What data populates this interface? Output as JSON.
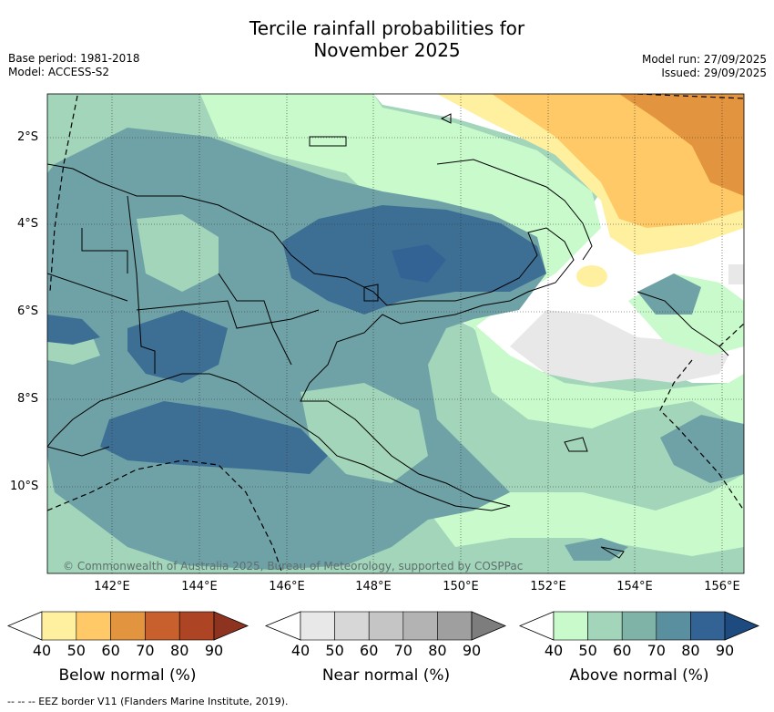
{
  "title_line1": "Tercile rainfall probabilities for",
  "title_line2": "November 2025",
  "meta_left": {
    "line1": "Base period: 1981-2018",
    "line2": "Model: ACCESS-S2"
  },
  "meta_right": {
    "line1": "Model run: 27/09/2025",
    "line2": "Issued: 29/09/2025"
  },
  "lat_labels": [
    "2°S",
    "4°S",
    "6°S",
    "8°S",
    "10°S"
  ],
  "lon_labels": [
    "142°E",
    "144°E",
    "146°E",
    "148°E",
    "150°E",
    "152°E",
    "154°E",
    "156°E"
  ],
  "copyright": "© Commonwealth of Australia 2025, Bureau of Meteorology, supported by COSPPac",
  "colorbars": [
    {
      "title": "Below normal (%)",
      "ticks": [
        "40",
        "50",
        "60",
        "70",
        "80",
        "90"
      ],
      "colors": [
        "#ffffff",
        "#fff0a0",
        "#fec966",
        "#e2943f",
        "#c8602e",
        "#ad4524",
        "#8e3320"
      ]
    },
    {
      "title": "Near normal (%)",
      "ticks": [
        "40",
        "50",
        "60",
        "70",
        "80",
        "90"
      ],
      "colors": [
        "#ffffff",
        "#e8e8e8",
        "#d7d7d7",
        "#c5c5c5",
        "#b3b3b3",
        "#9f9f9f",
        "#7d7d7d"
      ]
    },
    {
      "title": "Above normal (%)",
      "ticks": [
        "40",
        "50",
        "60",
        "70",
        "80",
        "90"
      ],
      "colors": [
        "#ffffff",
        "#c8facb",
        "#a2d5b9",
        "#7fb3a8",
        "#5a8f9f",
        "#336394",
        "#1d4a7f"
      ]
    }
  ],
  "footer": "--  --  -- EEZ border V11 (Flanders Marine Institute, 2019).",
  "map_colors": {
    "above_50": "#c8facb",
    "above_60": "#a2d5b9",
    "above_70": "#6fa2a6",
    "above_80": "#3d6f95",
    "below_50": "#fff0a0",
    "below_60": "#fec966",
    "below_70": "#e2943f",
    "near_40": "#e8e8e8"
  }
}
